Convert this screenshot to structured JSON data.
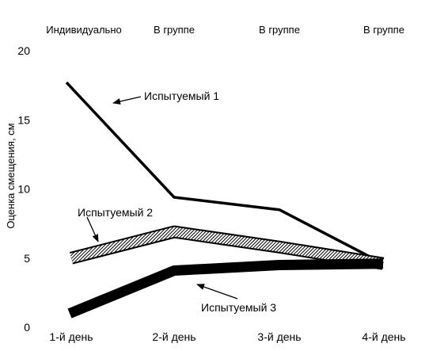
{
  "chart_data": {
    "type": "line",
    "title": "",
    "xlabel": "",
    "ylabel": "Оценка смещения, см",
    "categories": [
      "1-й день",
      "2-й день",
      "3-й день",
      "4-й день"
    ],
    "conditions": [
      "Индивидуально",
      "В группе",
      "В группе",
      "В группе"
    ],
    "ylim": [
      0,
      20
    ],
    "yticks": [
      0,
      5,
      10,
      15,
      20
    ],
    "grid": false,
    "series": [
      {
        "name": "Испытуемый 1",
        "values": [
          17.7,
          9.4,
          8.5,
          4.6
        ],
        "color": "#000000",
        "weight": "thin"
      },
      {
        "name": "Испытуемый 2",
        "values": [
          5.0,
          6.9,
          5.8,
          4.6
        ],
        "color": "#000000",
        "weight": "hatched"
      },
      {
        "name": "Испытуемый 3",
        "values": [
          1.0,
          4.1,
          4.5,
          4.6
        ],
        "color": "#000000",
        "weight": "thick"
      }
    ]
  }
}
